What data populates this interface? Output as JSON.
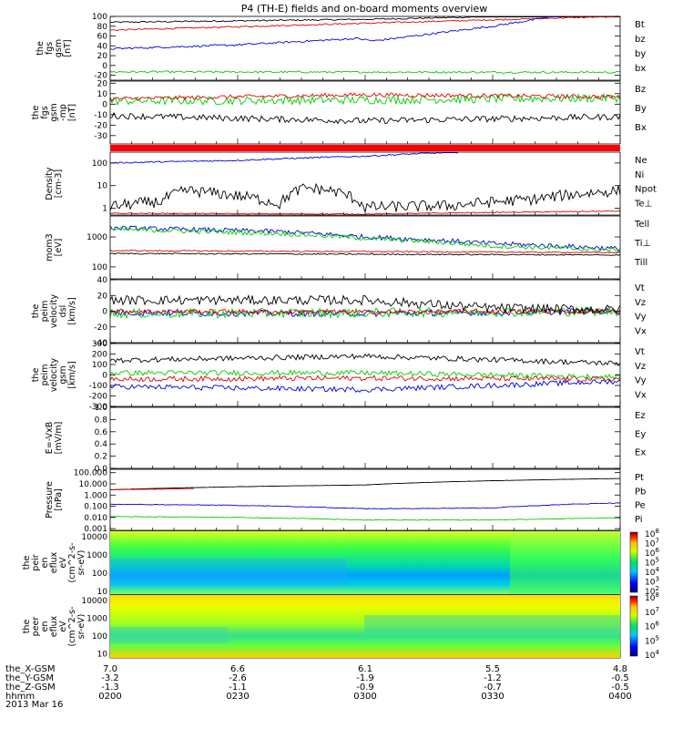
{
  "title": "P4 (TH-E) fields and on-board moments overview",
  "date": "2013 Mar 16",
  "chart_data": [
    {
      "id": "p1",
      "type": "line",
      "ylabel": [
        "the",
        "fgs",
        "gsm",
        "[nT]"
      ],
      "ylim": [
        -30,
        100
      ],
      "yticks": [
        {
          "v": 100,
          "t": "100"
        },
        {
          "v": 80,
          "t": "80"
        },
        {
          "v": 60,
          "t": "60"
        },
        {
          "v": 40,
          "t": "40"
        },
        {
          "v": 20,
          "t": "20"
        },
        {
          "v": 0,
          "t": "0"
        },
        {
          "v": -20,
          "t": "-20"
        }
      ],
      "legend": [
        {
          "name": "Bt",
          "color": "#000000"
        },
        {
          "name": "bz",
          "color": "#e00000"
        },
        {
          "name": "by",
          "color": "#00cc00"
        },
        {
          "name": "bx",
          "color": "#0000dd"
        }
      ],
      "series": [
        {
          "name": "Bt",
          "color": "#000000",
          "noise": 1.5,
          "x": [
            0,
            60,
            120
          ],
          "y": [
            88,
            94,
            105
          ]
        },
        {
          "name": "bz",
          "color": "#e00000",
          "noise": 1.5,
          "x": [
            0,
            60,
            120
          ],
          "y": [
            72,
            86,
            100
          ]
        },
        {
          "name": "by",
          "color": "#00cc00",
          "noise": 2,
          "x": [
            0,
            120
          ],
          "y": [
            -13,
            -14
          ]
        },
        {
          "name": "bx",
          "color": "#0000dd",
          "noise": 2,
          "x": [
            0,
            30,
            58,
            62,
            90,
            106
          ],
          "y": [
            34,
            42,
            55,
            50,
            80,
            102
          ]
        }
      ]
    },
    {
      "id": "p2",
      "type": "line",
      "ylabel": [
        "the",
        "fgs",
        "gsm",
        "-mp",
        "[nT]"
      ],
      "ylim": [
        -38,
        22
      ],
      "yticks": [
        {
          "v": 20,
          "t": "20"
        },
        {
          "v": 10,
          "t": "10"
        },
        {
          "v": 0,
          "t": "0"
        },
        {
          "v": -10,
          "t": "-10"
        },
        {
          "v": -20,
          "t": "-20"
        },
        {
          "v": -30,
          "t": "-30"
        }
      ],
      "legend": [
        {
          "name": "Bz",
          "color": "#e00000"
        },
        {
          "name": "By",
          "color": "#00cc00"
        },
        {
          "name": "Bx",
          "color": "#000000"
        }
      ],
      "series": [
        {
          "name": "By",
          "color": "#00cc00",
          "noise": 4,
          "x": [
            0,
            60,
            120
          ],
          "y": [
            3,
            4,
            6
          ]
        },
        {
          "name": "Bz",
          "color": "#e00000",
          "noise": 2,
          "x": [
            0,
            60,
            120
          ],
          "y": [
            5,
            9,
            7
          ]
        },
        {
          "name": "Bx",
          "color": "#000000",
          "noise": 3,
          "x": [
            0,
            60,
            120
          ],
          "y": [
            -11,
            -16,
            -12
          ]
        }
      ]
    },
    {
      "id": "p3",
      "type": "line",
      "ylabel": [
        "Density",
        "[cm-3]"
      ],
      "ylim": [
        0.5,
        300
      ],
      "log": true,
      "yticks": [
        {
          "v": 100,
          "t": "100"
        },
        {
          "v": 10,
          "t": "10"
        },
        {
          "v": 1,
          "t": "1"
        }
      ],
      "legend": [
        {
          "name": "Ne",
          "color": "#e00000"
        },
        {
          "name": "Ni",
          "color": "#000000"
        },
        {
          "name": "Npot",
          "color": "#0000dd"
        },
        {
          "name": "Te⊥",
          "color": "#e00000"
        }
      ],
      "series": [
        {
          "name": "Npot",
          "color": "#0000dd",
          "noise": 0.03,
          "x": [
            0,
            30,
            60,
            82
          ],
          "y": [
            100,
            130,
            200,
            300
          ]
        },
        {
          "name": "Ne",
          "color": "#e00000",
          "noise": 0.02,
          "x": [
            0,
            60,
            120
          ],
          "y": [
            0.6,
            0.55,
            0.75
          ]
        },
        {
          "name": "Ni",
          "color": "#000000",
          "noise": 0.25,
          "x": [
            0,
            12,
            18,
            40,
            46,
            52,
            60,
            80,
            100,
            120
          ],
          "y": [
            1.2,
            2,
            6,
            1.5,
            8,
            6,
            1.1,
            1.3,
            2.5,
            6
          ]
        }
      ]
    },
    {
      "id": "p4",
      "type": "line",
      "ylabel": [
        "mom3",
        "[eV]"
      ],
      "ylim": [
        40,
        5000
      ],
      "log": true,
      "yticks": [
        {
          "v": 1000,
          "t": "1000"
        },
        {
          "v": 100,
          "t": "100"
        }
      ],
      "legend": [
        {
          "name": "Tell",
          "color": "#000000"
        },
        {
          "name": "Ti⊥",
          "color": "#0000dd"
        },
        {
          "name": "Till",
          "color": "#00cc00"
        }
      ],
      "series": [
        {
          "name": "Ti⊥",
          "color": "#0000dd",
          "noise": 0.08,
          "x": [
            0,
            40,
            60,
            90,
            120
          ],
          "y": [
            2000,
            1500,
            1000,
            600,
            400
          ]
        },
        {
          "name": "Till",
          "color": "#00cc00",
          "noise": 0.08,
          "x": [
            0,
            40,
            60,
            90,
            120
          ],
          "y": [
            1800,
            1300,
            900,
            500,
            350
          ]
        },
        {
          "name": "Te⊥",
          "color": "#e00000",
          "noise": 0.02,
          "x": [
            0,
            120
          ],
          "y": [
            350,
            300
          ]
        },
        {
          "name": "Tell",
          "color": "#000000",
          "noise": 0.02,
          "x": [
            0,
            120
          ],
          "y": [
            280,
            250
          ]
        }
      ]
    },
    {
      "id": "p5",
      "type": "line",
      "ylabel": [
        "the",
        "peim",
        "velocity",
        "dsl",
        "[km/s]"
      ],
      "ylim": [
        -40,
        40
      ],
      "yticks": [
        {
          "v": 40,
          "t": "40"
        },
        {
          "v": 20,
          "t": "20"
        },
        {
          "v": 0,
          "t": "0"
        },
        {
          "v": -20,
          "t": "-20"
        },
        {
          "v": -40,
          "t": "-40"
        }
      ],
      "legend": [
        {
          "name": "Vt",
          "color": "#000000"
        },
        {
          "name": "Vz",
          "color": "#e00000"
        },
        {
          "name": "Vy",
          "color": "#00cc00"
        },
        {
          "name": "Vx",
          "color": "#0000dd"
        }
      ],
      "series": [
        {
          "name": "Vx",
          "color": "#0000dd",
          "noise": 4,
          "x": [
            0,
            60,
            120
          ],
          "y": [
            -2,
            -3,
            0
          ]
        },
        {
          "name": "Vy",
          "color": "#00cc00",
          "noise": 6,
          "x": [
            0,
            60,
            120
          ],
          "y": [
            -3,
            -2,
            0
          ]
        },
        {
          "name": "Vz",
          "color": "#e00000",
          "noise": 3,
          "x": [
            0,
            60,
            120
          ],
          "y": [
            0,
            -1,
            0
          ]
        },
        {
          "name": "Vt",
          "color": "#000000",
          "noise": 6,
          "x": [
            0,
            60,
            90,
            120
          ],
          "y": [
            14,
            14,
            4,
            2
          ]
        }
      ]
    },
    {
      "id": "p6",
      "type": "line",
      "ylabel": [
        "the",
        "peim",
        "velocity",
        "gsm",
        "[km/s]"
      ],
      "ylim": [
        -300,
        300
      ],
      "yticks": [
        {
          "v": 300,
          "t": "300"
        },
        {
          "v": 200,
          "t": "200"
        },
        {
          "v": 100,
          "t": "100"
        },
        {
          "v": 0,
          "t": "0"
        },
        {
          "v": -100,
          "t": "-100"
        },
        {
          "v": -200,
          "t": "-200"
        },
        {
          "v": -300,
          "t": "-300"
        }
      ],
      "legend": [
        {
          "name": "Vt",
          "color": "#000000"
        },
        {
          "name": "Vz",
          "color": "#e00000"
        },
        {
          "name": "Vy",
          "color": "#00cc00"
        },
        {
          "name": "Vx",
          "color": "#0000dd"
        }
      ],
      "series": [
        {
          "name": "Vt",
          "color": "#000000",
          "noise": 25,
          "x": [
            0,
            60,
            120
          ],
          "y": [
            140,
            180,
            110
          ]
        },
        {
          "name": "Vy",
          "color": "#00cc00",
          "noise": 25,
          "x": [
            0,
            60,
            120
          ],
          "y": [
            20,
            20,
            -20
          ]
        },
        {
          "name": "Vz",
          "color": "#e00000",
          "noise": 25,
          "x": [
            0,
            60,
            120
          ],
          "y": [
            -40,
            -30,
            -40
          ]
        },
        {
          "name": "Vx",
          "color": "#0000dd",
          "noise": 25,
          "x": [
            0,
            60,
            120
          ],
          "y": [
            -110,
            -140,
            -60
          ]
        }
      ]
    },
    {
      "id": "p7",
      "type": "line",
      "ylabel": [
        "E=-VxB",
        "[mV/m]"
      ],
      "ylim": [
        0,
        1
      ],
      "yticks": [
        {
          "v": 1,
          "t": "1.0"
        },
        {
          "v": 0.8,
          "t": "0.8"
        },
        {
          "v": 0.6,
          "t": "0.6"
        },
        {
          "v": 0.4,
          "t": "0.4"
        },
        {
          "v": 0.2,
          "t": "0.2"
        },
        {
          "v": 0,
          "t": "0.0"
        }
      ],
      "legend": [
        {
          "name": "Ez",
          "color": "#e00000"
        },
        {
          "name": "Ey",
          "color": "#00cc00"
        },
        {
          "name": "Ex",
          "color": "#0000dd"
        }
      ],
      "series": []
    },
    {
      "id": "p8",
      "type": "line",
      "ylabel": [
        "Pressure",
        "[nPa]"
      ],
      "ylim": [
        0.0007,
        200
      ],
      "log": true,
      "yticks": [
        {
          "v": 100,
          "t": "100.000"
        },
        {
          "v": 10,
          "t": "10.000"
        },
        {
          "v": 1,
          "t": "1.000"
        },
        {
          "v": 0.1,
          "t": "0.100"
        },
        {
          "v": 0.01,
          "t": "0.010"
        },
        {
          "v": 0.001,
          "t": "0.001"
        }
      ],
      "legend": [
        {
          "name": "Pt",
          "color": "#000000"
        },
        {
          "name": "Pb",
          "color": "#e00000"
        },
        {
          "name": "Pe",
          "color": "#00cc00"
        },
        {
          "name": "Pi",
          "color": "#0000dd"
        }
      ],
      "series": [
        {
          "name": "Pt",
          "color": "#000000",
          "noise": 0.01,
          "x": [
            0,
            60,
            120
          ],
          "y": [
            3,
            8,
            30
          ]
        },
        {
          "name": "Pb",
          "color": "#e00000",
          "noise": 0.01,
          "x": [
            0,
            12,
            20
          ],
          "y": [
            3,
            3.4,
            3.8
          ]
        },
        {
          "name": "Pi",
          "color": "#0000dd",
          "noise": 0.03,
          "x": [
            0,
            30,
            60,
            90,
            120
          ],
          "y": [
            0.15,
            0.12,
            0.06,
            0.07,
            0.2
          ]
        },
        {
          "name": "Pe",
          "color": "#00cc00",
          "noise": 0.03,
          "x": [
            0,
            30,
            60,
            90,
            120
          ],
          "y": [
            0.012,
            0.01,
            0.006,
            0.006,
            0.009
          ]
        }
      ]
    },
    {
      "id": "p9",
      "type": "heatmap",
      "ylabel": [
        "the",
        "peir",
        "en",
        "eflux",
        "eV",
        "(cm^2-s-",
        "sr-eV)"
      ],
      "ylim": [
        7,
        20000
      ],
      "log": true,
      "yticks": [
        {
          "v": 10000,
          "t": "10000"
        },
        {
          "v": 1000,
          "t": "1000"
        },
        {
          "v": 100,
          "t": "100"
        },
        {
          "v": 10,
          "t": "10"
        }
      ],
      "colorbar": {
        "ticks": [
          "10^8",
          "10^7",
          "10^6",
          "10^5",
          "10^4",
          "10^3",
          "10^2"
        ]
      }
    },
    {
      "id": "p10",
      "type": "heatmap",
      "ylabel": [
        "the",
        "peer",
        "en",
        "eflux",
        "eV",
        "(cm^2-s-",
        "sr-eV)"
      ],
      "ylim": [
        6,
        20000
      ],
      "log": true,
      "yticks": [
        {
          "v": 10000,
          "t": "10000"
        },
        {
          "v": 1000,
          "t": "1000"
        },
        {
          "v": 100,
          "t": "100"
        },
        {
          "v": 10,
          "t": "10"
        }
      ],
      "colorbar": {
        "ticks": [
          "10^8",
          "10^7",
          "10^6",
          "10^5",
          "10^4"
        ]
      }
    }
  ],
  "x_axis": {
    "range": [
      0,
      120
    ],
    "rows": [
      {
        "label": "the_X-GSM",
        "values": [
          "7.0",
          "6.6",
          "6.1",
          "5.5",
          "4.8"
        ]
      },
      {
        "label": "the_Y-GSM",
        "values": [
          "-3.2",
          "-2.6",
          "-1.9",
          "-1.2",
          "-0.5"
        ]
      },
      {
        "label": "the_Z-GSM",
        "values": [
          "-1.3",
          "-1.1",
          "-0.9",
          "-0.7",
          "-0.5"
        ]
      },
      {
        "label": "hhmm",
        "values": [
          "0200",
          "0230",
          "0300",
          "0330",
          "0400"
        ]
      }
    ]
  }
}
